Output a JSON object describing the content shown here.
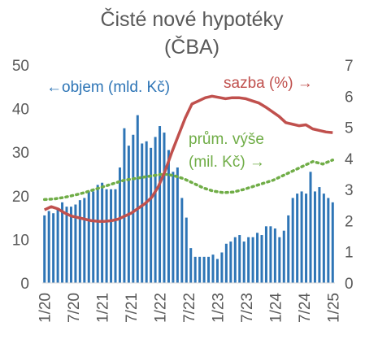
{
  "chart_data": {
    "type": "bar",
    "title": "Čisté nové hypotéky",
    "subtitle": "(ČBA)",
    "colors": {
      "bars": "#2E75B6",
      "rate": "#C0504D",
      "avg": "#70AD47",
      "text": "#595959"
    },
    "y_left": {
      "min": 0,
      "max": 50,
      "ticks": [
        "0",
        "10",
        "20",
        "30",
        "40",
        "50"
      ]
    },
    "y_right": {
      "min": 0,
      "max": 7,
      "ticks": [
        "0",
        "1",
        "2",
        "3",
        "4",
        "5",
        "6",
        "7"
      ]
    },
    "x_ticks": [
      "1/20",
      "7/20",
      "1/21",
      "7/21",
      "1/22",
      "7/22",
      "1/23",
      "7/23",
      "1/24",
      "7/24",
      "1/25"
    ],
    "annotations": {
      "objem": "←objem (mld. Kč)",
      "sazba": "sazba (%) →",
      "vyse_line1": "prům. výše",
      "vyse_line2": "(mil. Kč) →"
    },
    "series": [
      {
        "name": "objem (mld. Kč)",
        "type": "bar",
        "axis": "left",
        "values": [
          15.5,
          16.5,
          16,
          17,
          18.5,
          17.5,
          17.5,
          18,
          19,
          19.5,
          21,
          21,
          22.5,
          23,
          21.5,
          21.5,
          21.5,
          26.5,
          35.5,
          31.5,
          34,
          38.5,
          32,
          32.5,
          31,
          33.5,
          36,
          34.5,
          30.5,
          25.5,
          26.5,
          19.5,
          15,
          8,
          6,
          6,
          6,
          6,
          6.5,
          5.5,
          7,
          9,
          9.5,
          10.5,
          11,
          9.5,
          10.5,
          10.5,
          11.5,
          11,
          13,
          13,
          12.5,
          10.5,
          12,
          15.5,
          19.5,
          20.5,
          21,
          20.5,
          25.5,
          21,
          22,
          20.5,
          19.5,
          18.5
        ]
      },
      {
        "name": "sazba (%)",
        "type": "line",
        "axis": "right",
        "values": [
          2.35,
          2.45,
          2.38,
          2.25,
          2.15,
          2.1,
          2.05,
          2.0,
          1.98,
          1.98,
          2.0,
          2.05,
          2.15,
          2.25,
          2.4,
          2.55,
          2.75,
          3.1,
          3.6,
          4.2,
          4.75,
          5.3,
          5.75,
          5.85,
          5.95,
          6.0,
          5.96,
          5.92,
          5.95,
          5.95,
          5.92,
          5.85,
          5.78,
          5.65,
          5.5,
          5.35,
          5.15,
          5.1,
          5.05,
          5.08,
          4.95,
          4.9,
          4.85,
          4.83
        ],
        "x_start": "1/20",
        "x_end": "1/25"
      },
      {
        "name": "prům. výše (mil. Kč)",
        "type": "line",
        "style": "dotted",
        "axis": "right",
        "values": [
          2.68,
          2.7,
          2.75,
          2.82,
          2.9,
          3.0,
          3.1,
          3.2,
          3.3,
          3.35,
          3.4,
          3.45,
          3.5,
          3.45,
          3.35,
          3.2,
          3.05,
          2.95,
          2.9,
          2.92,
          3.0,
          3.1,
          3.2,
          3.3,
          3.45,
          3.6,
          3.75,
          3.9,
          3.82,
          3.95
        ],
        "x_start": "1/20",
        "x_end": "1/25"
      }
    ]
  }
}
